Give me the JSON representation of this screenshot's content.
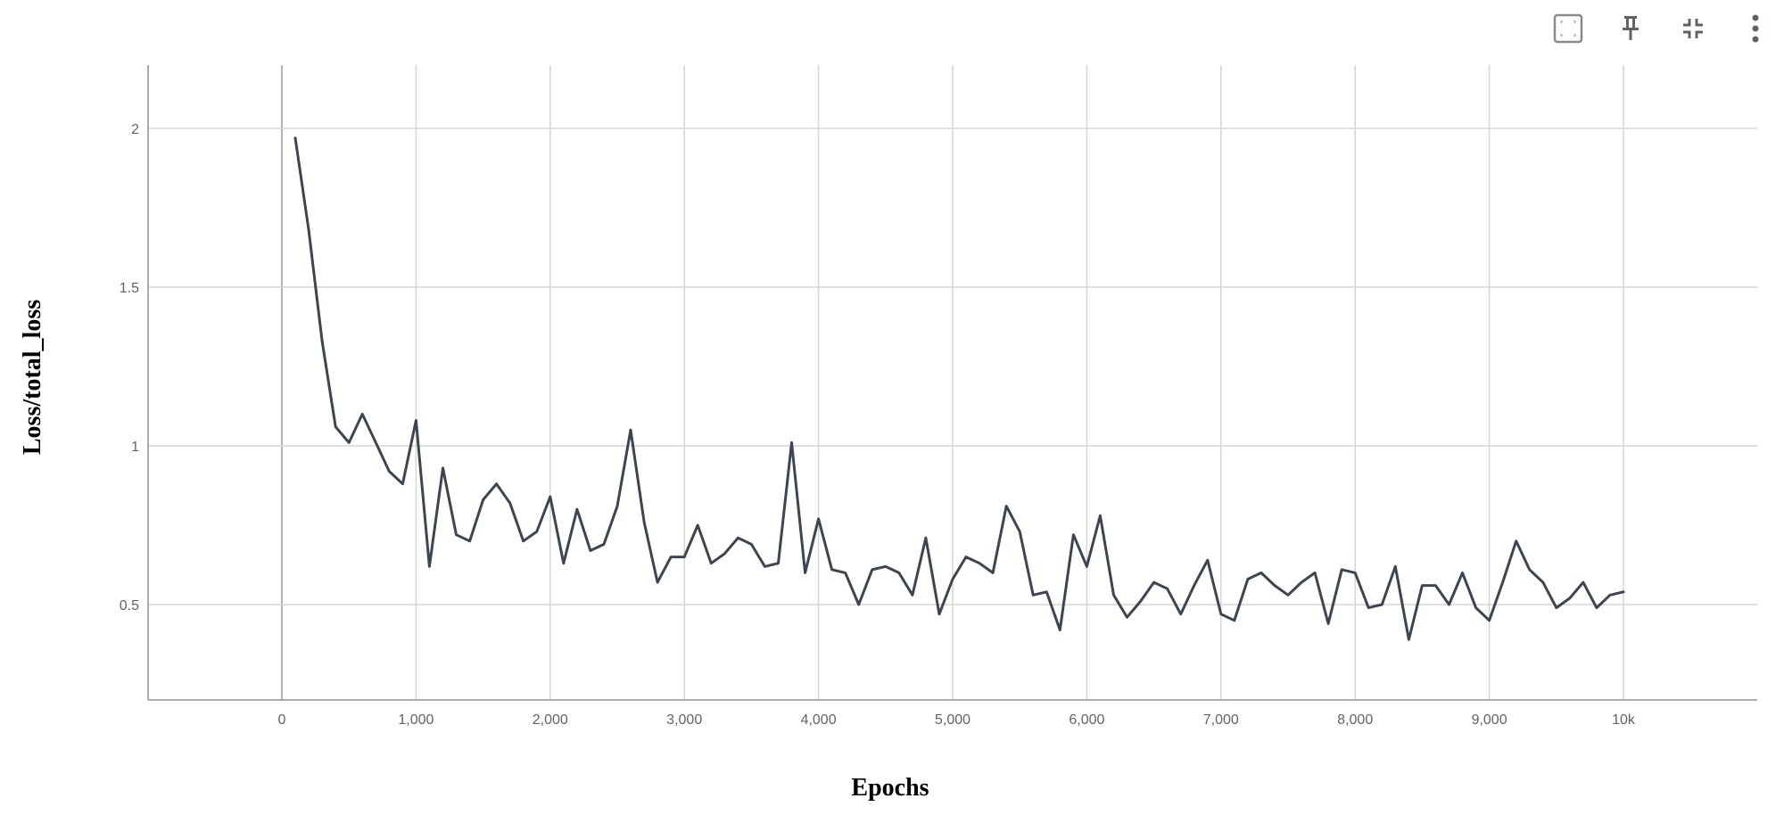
{
  "toolbar": {
    "icons": [
      "fit-domain-icon",
      "pin-icon",
      "collapse-icon",
      "more-options-icon"
    ]
  },
  "colors": {
    "line": "#3c4550",
    "grid": "#d6d6d6",
    "zero_line": "#b3b3b3",
    "axis": "#8f8f8f",
    "tick_text": "#5f6368",
    "icon": "#5f6368"
  },
  "chart_data": {
    "type": "line",
    "xlabel": "Epochs",
    "ylabel": "Loss/total_loss",
    "xlim": [
      -1000,
      11000
    ],
    "ylim": [
      0.2,
      2.2
    ],
    "grid": true,
    "x_ticks": [
      {
        "value": 0,
        "label": "0"
      },
      {
        "value": 1000,
        "label": "1,000"
      },
      {
        "value": 2000,
        "label": "2,000"
      },
      {
        "value": 3000,
        "label": "3,000"
      },
      {
        "value": 4000,
        "label": "4,000"
      },
      {
        "value": 5000,
        "label": "5,000"
      },
      {
        "value": 6000,
        "label": "6,000"
      },
      {
        "value": 7000,
        "label": "7,000"
      },
      {
        "value": 8000,
        "label": "8,000"
      },
      {
        "value": 9000,
        "label": "9,000"
      },
      {
        "value": 10000,
        "label": "10k"
      }
    ],
    "y_ticks": [
      {
        "value": 0.5,
        "label": "0.5"
      },
      {
        "value": 1,
        "label": "1"
      },
      {
        "value": 1.5,
        "label": "1.5"
      },
      {
        "value": 2,
        "label": "2"
      }
    ],
    "series": [
      {
        "x": [
          100,
          200,
          300,
          400,
          500,
          600,
          700,
          800,
          900,
          1000,
          1100,
          1200,
          1300,
          1400,
          1500,
          1600,
          1700,
          1800,
          1900,
          2000,
          2100,
          2200,
          2300,
          2400,
          2500,
          2600,
          2700,
          2800,
          2900,
          3000,
          3100,
          3200,
          3300,
          3400,
          3500,
          3600,
          3700,
          3800,
          3900,
          4000,
          4100,
          4200,
          4300,
          4400,
          4500,
          4600,
          4700,
          4800,
          4900,
          5000,
          5100,
          5200,
          5300,
          5400,
          5500,
          5600,
          5700,
          5800,
          5900,
          6000,
          6100,
          6200,
          6300,
          6400,
          6500,
          6600,
          6700,
          6800,
          6900,
          7000,
          7100,
          7200,
          7300,
          7400,
          7500,
          7600,
          7700,
          7800,
          7900,
          8000,
          8100,
          8200,
          8300,
          8400,
          8500,
          8600,
          8700,
          8800,
          8900,
          9000,
          9100,
          9200,
          9300,
          9400,
          9500,
          9600,
          9700,
          9800,
          9900,
          10000
        ],
        "values": [
          1.97,
          1.68,
          1.33,
          1.06,
          1.01,
          1.1,
          1.01,
          0.92,
          0.88,
          1.08,
          0.62,
          0.93,
          0.72,
          0.7,
          0.83,
          0.88,
          0.82,
          0.7,
          0.73,
          0.84,
          0.63,
          0.8,
          0.67,
          0.69,
          0.81,
          1.05,
          0.76,
          0.57,
          0.65,
          0.65,
          0.75,
          0.63,
          0.66,
          0.71,
          0.69,
          0.62,
          0.63,
          1.01,
          0.6,
          0.77,
          0.61,
          0.6,
          0.5,
          0.61,
          0.62,
          0.6,
          0.53,
          0.71,
          0.47,
          0.58,
          0.65,
          0.63,
          0.6,
          0.81,
          0.73,
          0.53,
          0.54,
          0.42,
          0.72,
          0.62,
          0.78,
          0.53,
          0.46,
          0.51,
          0.57,
          0.55,
          0.47,
          0.56,
          0.64,
          0.47,
          0.45,
          0.58,
          0.6,
          0.56,
          0.53,
          0.57,
          0.6,
          0.44,
          0.61,
          0.6,
          0.49,
          0.5,
          0.62,
          0.39,
          0.56,
          0.56,
          0.5,
          0.6,
          0.49,
          0.45,
          0.57,
          0.7,
          0.61,
          0.57,
          0.49,
          0.52,
          0.57,
          0.49,
          0.53,
          0.54
        ]
      }
    ]
  }
}
